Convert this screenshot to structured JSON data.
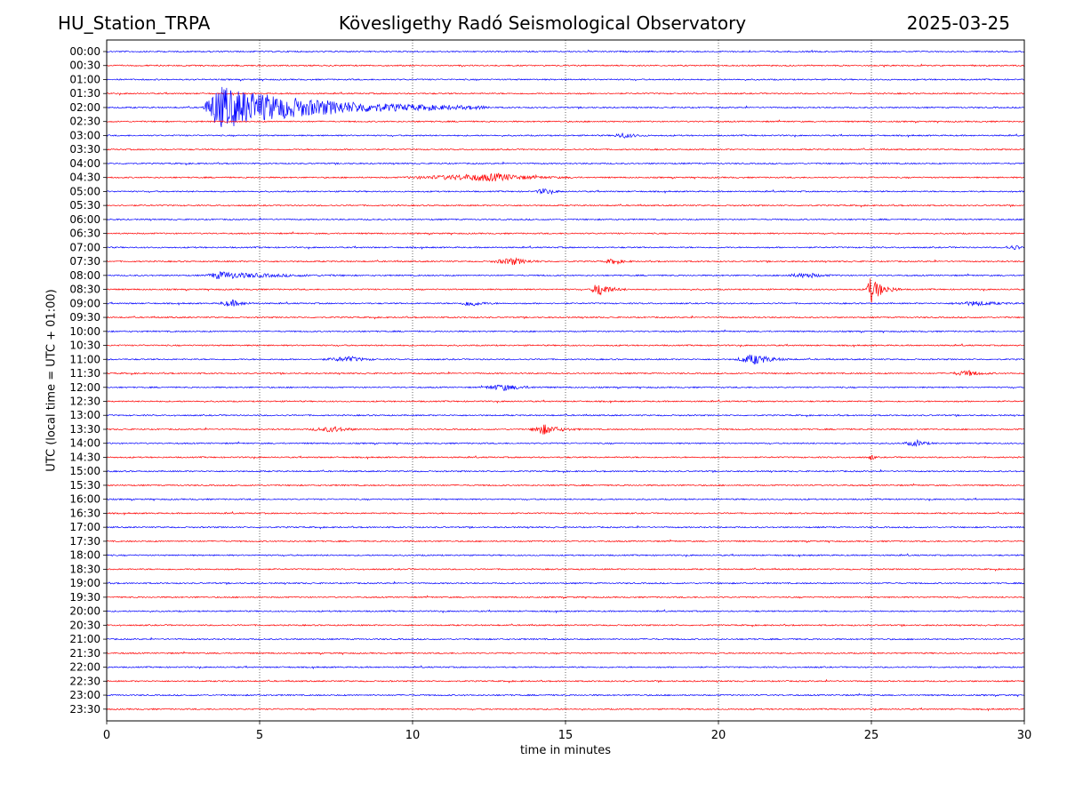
{
  "header": {
    "station": "HU_Station_TRPA",
    "title": "Kövesligethy Radó Seismological Observatory",
    "date": "2025-03-25"
  },
  "colors": {
    "odd_row": "#0000ff",
    "even_row": "#ff0000",
    "grid": "#000000"
  },
  "chart_data": {
    "type": "line",
    "title": "Kövesligethy Radó Seismological Observatory",
    "xlabel": "time in minutes",
    "ylabel": "UTC (local time = UTC + 01:00)",
    "xlim": [
      0,
      30
    ],
    "xticks": [
      "0",
      "5",
      "10",
      "15",
      "20",
      "25",
      "30"
    ],
    "vertical_gridlines_at": [
      5,
      10,
      15,
      20,
      25
    ],
    "rows": [
      "00:00",
      "00:30",
      "01:00",
      "01:30",
      "02:00",
      "02:30",
      "03:00",
      "03:30",
      "04:00",
      "04:30",
      "05:00",
      "05:30",
      "06:00",
      "06:30",
      "07:00",
      "07:30",
      "08:00",
      "08:30",
      "09:00",
      "09:30",
      "10:00",
      "10:30",
      "11:00",
      "11:30",
      "12:00",
      "12:30",
      "13:00",
      "13:30",
      "14:00",
      "14:30",
      "15:00",
      "15:30",
      "16:00",
      "16:30",
      "17:00",
      "17:30",
      "18:00",
      "18:30",
      "19:00",
      "19:30",
      "20:00",
      "20:30",
      "21:00",
      "21:30",
      "22:00",
      "22:30",
      "23:00",
      "23:30"
    ],
    "row_colors": "alternating blue / red",
    "events": [
      {
        "row": "02:00",
        "start_min": 3.1,
        "peak_min": 3.7,
        "end_min": 12.5,
        "amplitude": 3.0
      },
      {
        "row": "03:00",
        "start_min": 16.5,
        "peak_min": 16.9,
        "end_min": 17.8,
        "amplitude": 0.35
      },
      {
        "row": "04:30",
        "start_min": 9.5,
        "peak_min": 12.8,
        "end_min": 15.5,
        "amplitude": 0.5
      },
      {
        "row": "05:00",
        "start_min": 14.0,
        "peak_min": 14.3,
        "end_min": 15.0,
        "amplitude": 0.4
      },
      {
        "row": "07:00",
        "start_min": 29.2,
        "peak_min": 29.8,
        "end_min": 30.0,
        "amplitude": 0.3
      },
      {
        "row": "07:30",
        "start_min": 12.5,
        "peak_min": 13.3,
        "end_min": 14.5,
        "amplitude": 0.45
      },
      {
        "row": "07:30",
        "start_min": 16.2,
        "peak_min": 16.6,
        "end_min": 17.3,
        "amplitude": 0.35
      },
      {
        "row": "08:00",
        "start_min": 3.2,
        "peak_min": 3.7,
        "end_min": 7.8,
        "amplitude": 0.5
      },
      {
        "row": "08:00",
        "start_min": 22.0,
        "peak_min": 23.0,
        "end_min": 24.0,
        "amplitude": 0.3
      },
      {
        "row": "08:30",
        "start_min": 15.8,
        "peak_min": 16.1,
        "end_min": 17.0,
        "amplitude": 1.0
      },
      {
        "row": "08:30",
        "start_min": 24.8,
        "peak_min": 25.0,
        "end_min": 26.0,
        "amplitude": 1.8
      },
      {
        "row": "09:00",
        "start_min": 3.6,
        "peak_min": 4.1,
        "end_min": 5.0,
        "amplitude": 0.45
      },
      {
        "row": "09:00",
        "start_min": 11.5,
        "peak_min": 11.9,
        "end_min": 12.8,
        "amplitude": 0.4
      },
      {
        "row": "09:00",
        "start_min": 27.5,
        "peak_min": 28.5,
        "end_min": 30.0,
        "amplitude": 0.3
      },
      {
        "row": "11:00",
        "start_min": 20.5,
        "peak_min": 21.2,
        "end_min": 22.5,
        "amplitude": 0.7
      },
      {
        "row": "11:00",
        "start_min": 7.0,
        "peak_min": 8.0,
        "end_min": 9.0,
        "amplitude": 0.35
      },
      {
        "row": "11:30",
        "start_min": 27.5,
        "peak_min": 28.2,
        "end_min": 29.2,
        "amplitude": 0.35
      },
      {
        "row": "12:00",
        "start_min": 12.2,
        "peak_min": 13.0,
        "end_min": 14.5,
        "amplitude": 0.4
      },
      {
        "row": "13:30",
        "start_min": 6.5,
        "peak_min": 7.5,
        "end_min": 8.5,
        "amplitude": 0.35
      },
      {
        "row": "13:30",
        "start_min": 13.8,
        "peak_min": 14.3,
        "end_min": 15.5,
        "amplitude": 0.7
      },
      {
        "row": "14:00",
        "start_min": 26.0,
        "peak_min": 26.5,
        "end_min": 27.2,
        "amplitude": 0.4
      },
      {
        "row": "14:30",
        "start_min": 24.9,
        "peak_min": 25.0,
        "end_min": 25.2,
        "amplitude": 0.5
      }
    ]
  }
}
